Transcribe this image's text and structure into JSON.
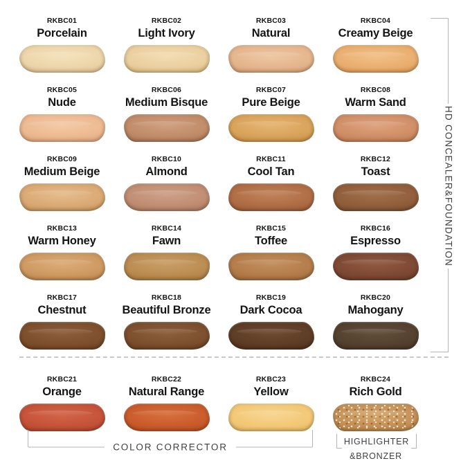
{
  "ui": {
    "background": "#ffffff",
    "line": "#b5b5b5",
    "dash": "#c9c9c9",
    "ink": "#141414",
    "muted": "#3f3f3f"
  },
  "groups": {
    "right_bracket_label": "HD CONCEALER&FOUNDATION",
    "color_corrector_label": "COLOR CORRECTOR",
    "highlighter_line1": "HIGHLIGHTER",
    "highlighter_line2": "&BRONZER"
  },
  "shades": [
    {
      "code": "RKBC01",
      "name": "Porcelain",
      "color": "#ecd4a8",
      "edge": "#d9b987",
      "highlight": "#f4e2bc"
    },
    {
      "code": "RKBC02",
      "name": "Light Ivory",
      "color": "#eace9e",
      "edge": "#d7b276",
      "highlight": "#f2dcb2"
    },
    {
      "code": "RKBC03",
      "name": "Natural",
      "color": "#e4b48c",
      "edge": "#d09b6d",
      "highlight": "#edc7a2"
    },
    {
      "code": "RKBC04",
      "name": "Creamy Beige",
      "color": "#e9ad6e",
      "edge": "#d69252",
      "highlight": "#f1c088"
    },
    {
      "code": "RKBC05",
      "name": "Nude",
      "color": "#ecb890",
      "edge": "#dc9f74",
      "highlight": "#f3caa6"
    },
    {
      "code": "RKBC06",
      "name": "Medium Bisque",
      "color": "#bf8a68",
      "edge": "#a66f50",
      "highlight": "#cf9f7e"
    },
    {
      "code": "RKBC07",
      "name": "Pure Beige",
      "color": "#d8a159",
      "edge": "#c48a42",
      "highlight": "#e4b572"
    },
    {
      "code": "RKBC08",
      "name": "Warm Sand",
      "color": "#cf8d65",
      "edge": "#ba754e",
      "highlight": "#dda37e"
    },
    {
      "code": "RKBC09",
      "name": "Medium Beige",
      "color": "#d9a873",
      "edge": "#c48f55",
      "highlight": "#e5bc8c"
    },
    {
      "code": "RKBC10",
      "name": "Almond",
      "color": "#bf8c71",
      "edge": "#a87458",
      "highlight": "#cda088"
    },
    {
      "code": "RKBC11",
      "name": "Cool Tan",
      "color": "#af6c44",
      "edge": "#965732",
      "highlight": "#bf8159"
    },
    {
      "code": "RKBC12",
      "name": "Toast",
      "color": "#8f5d3a",
      "edge": "#794b2b",
      "highlight": "#a06f4a"
    },
    {
      "code": "RKBC13",
      "name": "Warm Honey",
      "color": "#cd9860",
      "edge": "#b67f48",
      "highlight": "#dbac78"
    },
    {
      "code": "RKBC14",
      "name": "Fawn",
      "color": "#ba8b51",
      "edge": "#a2753d",
      "highlight": "#c89e66"
    },
    {
      "code": "RKBC15",
      "name": "Toffee",
      "color": "#b37b49",
      "edge": "#9c6636",
      "highlight": "#c28f5e"
    },
    {
      "code": "RKBC16",
      "name": "Espresso",
      "color": "#7d4833",
      "edge": "#693926",
      "highlight": "#8f5840"
    },
    {
      "code": "RKBC17",
      "name": "Chestnut",
      "color": "#7c4e2c",
      "edge": "#683f21",
      "highlight": "#8d5e3a"
    },
    {
      "code": "RKBC18",
      "name": "Beautiful Bronze",
      "color": "#7b4e2d",
      "edge": "#674022",
      "highlight": "#8c5f3b"
    },
    {
      "code": "RKBC19",
      "name": "Dark Cocoa",
      "color": "#5d3c25",
      "edge": "#4c2f1b",
      "highlight": "#6d4a30"
    },
    {
      "code": "RKBC20",
      "name": "Mahogany",
      "color": "#53402e",
      "edge": "#443425",
      "highlight": "#624e3a"
    },
    {
      "code": "RKBC21",
      "name": "Orange",
      "color": "#c45238",
      "edge": "#ae4127",
      "highlight": "#d26448"
    },
    {
      "code": "RKBC22",
      "name": "Natural Range",
      "color": "#c95a2b",
      "edge": "#b3491f",
      "highlight": "#d76e3c"
    },
    {
      "code": "RKBC23",
      "name": "Yellow",
      "color": "#f2c775",
      "edge": "#e3b258",
      "highlight": "#f7d590"
    },
    {
      "code": "RKBC24",
      "name": "Rich Gold",
      "color": "#c39057",
      "edge": "#ab7a3f",
      "highlight": "#d4a56c",
      "shimmer": true
    }
  ]
}
